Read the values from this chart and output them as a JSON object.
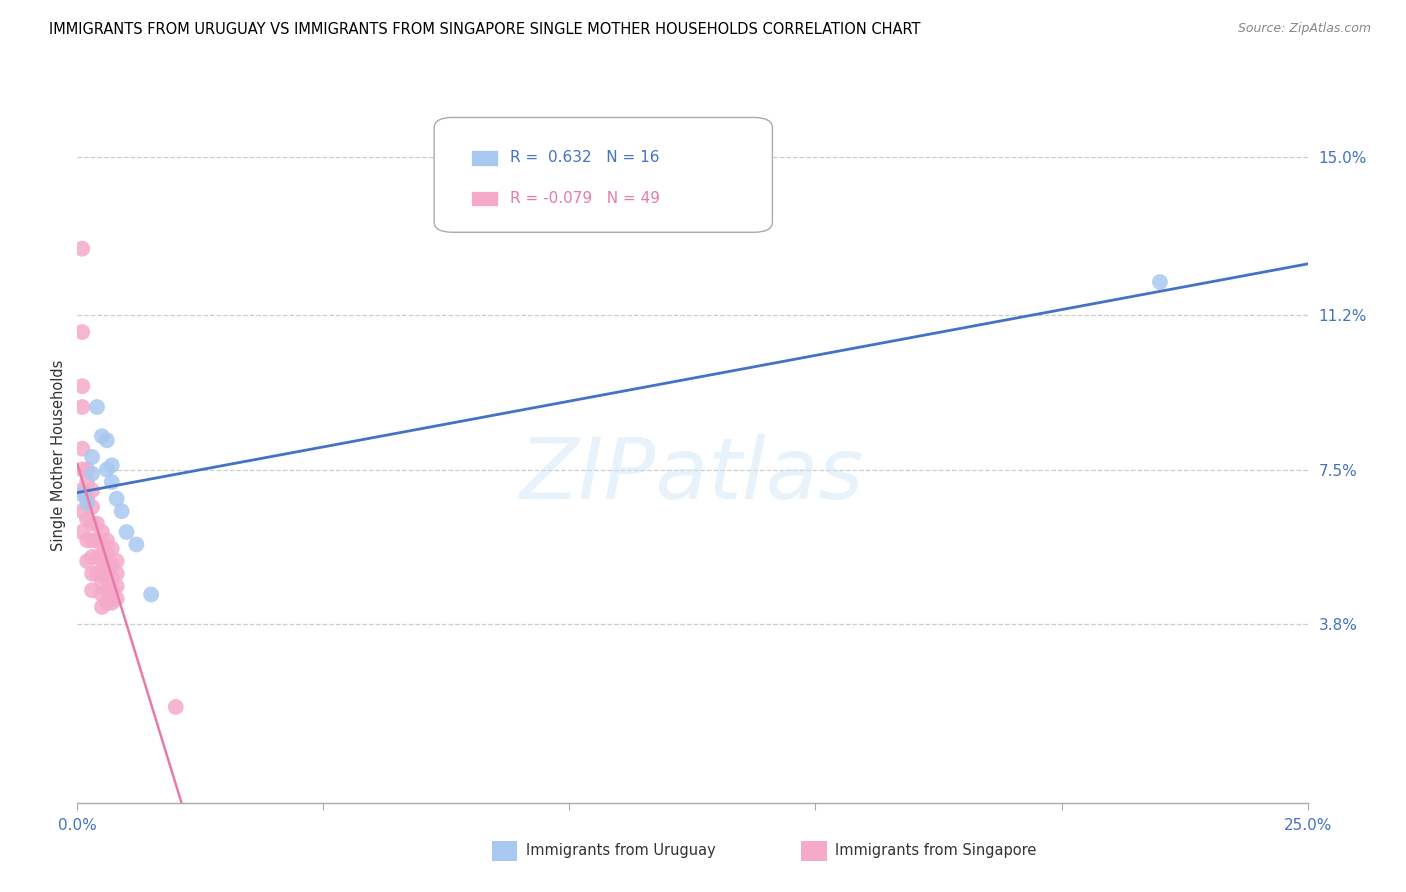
{
  "title": "IMMIGRANTS FROM URUGUAY VS IMMIGRANTS FROM SINGAPORE SINGLE MOTHER HOUSEHOLDS CORRELATION CHART",
  "source": "Source: ZipAtlas.com",
  "ylabel": "Single Mother Households",
  "ytick_labels": [
    "3.8%",
    "7.5%",
    "11.2%",
    "15.0%"
  ],
  "ytick_values": [
    0.038,
    0.075,
    0.112,
    0.15
  ],
  "xmin": 0.0,
  "xmax": 0.25,
  "ymin": -0.005,
  "ymax": 0.162,
  "r1": "0.632",
  "n1": "16",
  "r2": "-0.079",
  "n2": "49",
  "color_uruguay": "#a8c8f0",
  "color_singapore": "#f5aaca",
  "line_color_uruguay": "#4472c4",
  "line_color_singapore": "#e87aaa",
  "watermark": "ZIPatlas",
  "legend_label1": "Immigrants from Uruguay",
  "legend_label2": "Immigrants from Singapore",
  "uruguay_x": [
    0.001,
    0.002,
    0.003,
    0.003,
    0.004,
    0.005,
    0.006,
    0.006,
    0.007,
    0.007,
    0.008,
    0.009,
    0.01,
    0.012,
    0.015,
    0.22
  ],
  "uruguay_y": [
    0.069,
    0.067,
    0.078,
    0.074,
    0.09,
    0.083,
    0.082,
    0.075,
    0.076,
    0.072,
    0.068,
    0.065,
    0.06,
    0.057,
    0.045,
    0.12
  ],
  "singapore_x": [
    0.001,
    0.001,
    0.001,
    0.001,
    0.001,
    0.001,
    0.001,
    0.001,
    0.001,
    0.002,
    0.002,
    0.002,
    0.002,
    0.002,
    0.002,
    0.003,
    0.003,
    0.003,
    0.003,
    0.003,
    0.003,
    0.003,
    0.004,
    0.004,
    0.004,
    0.004,
    0.005,
    0.005,
    0.005,
    0.005,
    0.005,
    0.005,
    0.005,
    0.006,
    0.006,
    0.006,
    0.006,
    0.006,
    0.006,
    0.007,
    0.007,
    0.007,
    0.007,
    0.007,
    0.008,
    0.008,
    0.008,
    0.008,
    0.02
  ],
  "singapore_y": [
    0.128,
    0.108,
    0.095,
    0.09,
    0.08,
    0.075,
    0.07,
    0.065,
    0.06,
    0.075,
    0.072,
    0.068,
    0.063,
    0.058,
    0.053,
    0.07,
    0.066,
    0.062,
    0.058,
    0.054,
    0.05,
    0.046,
    0.062,
    0.058,
    0.054,
    0.05,
    0.06,
    0.057,
    0.054,
    0.051,
    0.048,
    0.045,
    0.042,
    0.058,
    0.055,
    0.052,
    0.049,
    0.046,
    0.043,
    0.056,
    0.052,
    0.049,
    0.046,
    0.043,
    0.053,
    0.05,
    0.047,
    0.044,
    0.018
  ]
}
